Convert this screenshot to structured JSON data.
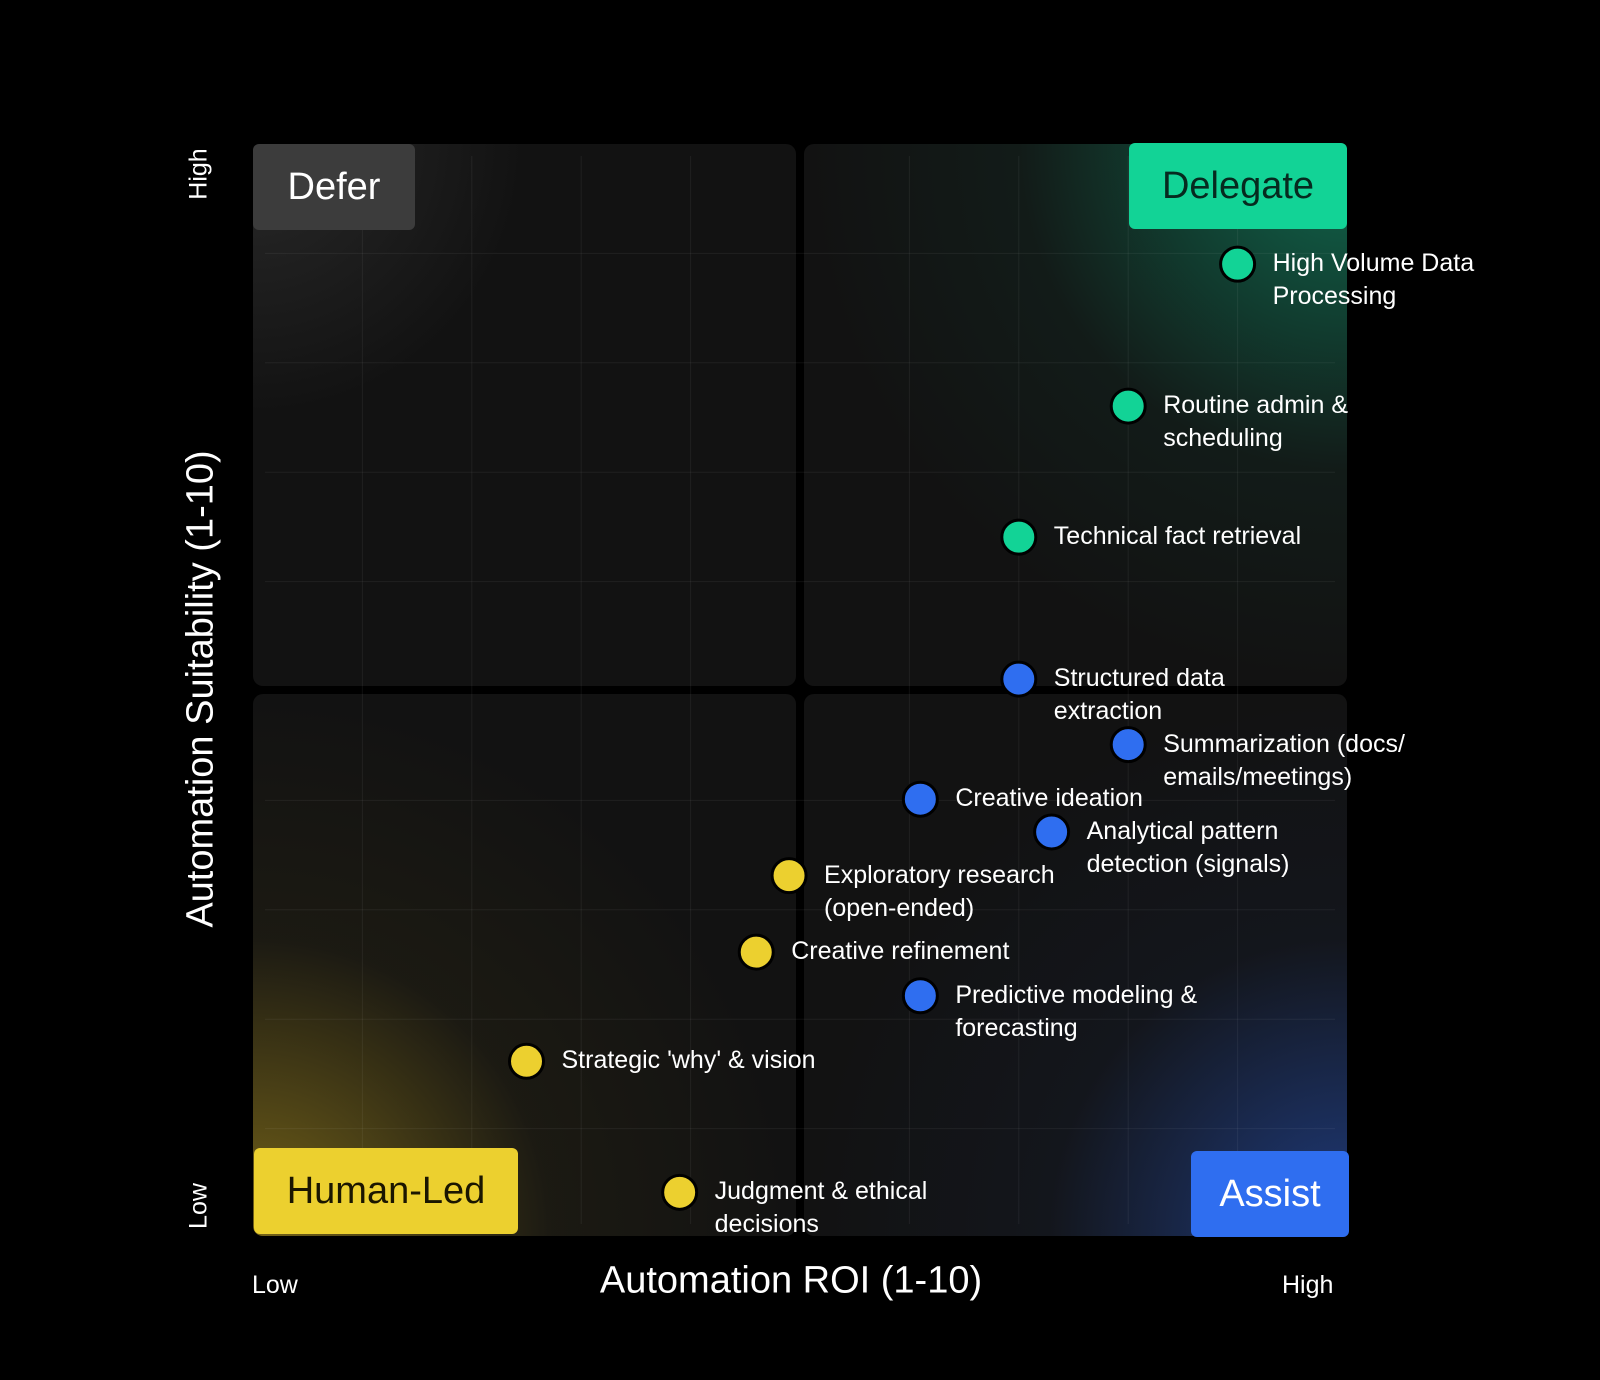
{
  "colors": {
    "delegate": "#12d396",
    "assist": "#2f6ef0",
    "human": "#ecd02f",
    "defer": "#3c3c3c",
    "panel": "#121212",
    "background": "#000000"
  },
  "quadrants": {
    "defer": "Defer",
    "delegate": "Delegate",
    "human_led": "Human-Led",
    "assist": "Assist"
  },
  "chart_data": {
    "type": "scatter",
    "title": "",
    "xlabel": "Automation ROI (1-10)",
    "ylabel": "Automation Suitability  (1-10)",
    "x_low": "Low",
    "x_high": "High",
    "y_low": "Low",
    "y_high": "High",
    "xlim": [
      0,
      10
    ],
    "ylim": [
      0,
      10
    ],
    "grid": true,
    "legend": "quadrant labels in corners",
    "points": [
      {
        "label": "High Volume Data\nProcessing",
        "category": "delegate",
        "x": 9.0,
        "y": 8.9
      },
      {
        "label": "Routine admin &\nscheduling",
        "category": "delegate",
        "x": 8.0,
        "y": 7.6
      },
      {
        "label": "Technical fact retrieval",
        "category": "delegate",
        "x": 7.0,
        "y": 6.4
      },
      {
        "label": "Structured data\nextraction",
        "category": "assist",
        "x": 7.0,
        "y": 5.1
      },
      {
        "label": "Summarization (docs/\nemails/meetings)",
        "category": "assist",
        "x": 8.0,
        "y": 4.5
      },
      {
        "label": "Creative ideation",
        "category": "assist",
        "x": 6.1,
        "y": 4.0
      },
      {
        "label": "Analytical pattern\ndetection (signals)",
        "category": "assist",
        "x": 7.3,
        "y": 3.7
      },
      {
        "label": "Exploratory research\n(open-ended)",
        "category": "human",
        "x": 4.9,
        "y": 3.3
      },
      {
        "label": "Creative refinement",
        "category": "human",
        "x": 4.6,
        "y": 2.6
      },
      {
        "label": "Predictive modeling &\nforecasting",
        "category": "assist",
        "x": 6.1,
        "y": 2.2
      },
      {
        "label": "Strategic 'why' & vision",
        "category": "human",
        "x": 2.5,
        "y": 1.6
      },
      {
        "label": "Judgment & ethical\ndecisions",
        "category": "human",
        "x": 3.9,
        "y": 0.4
      }
    ]
  }
}
